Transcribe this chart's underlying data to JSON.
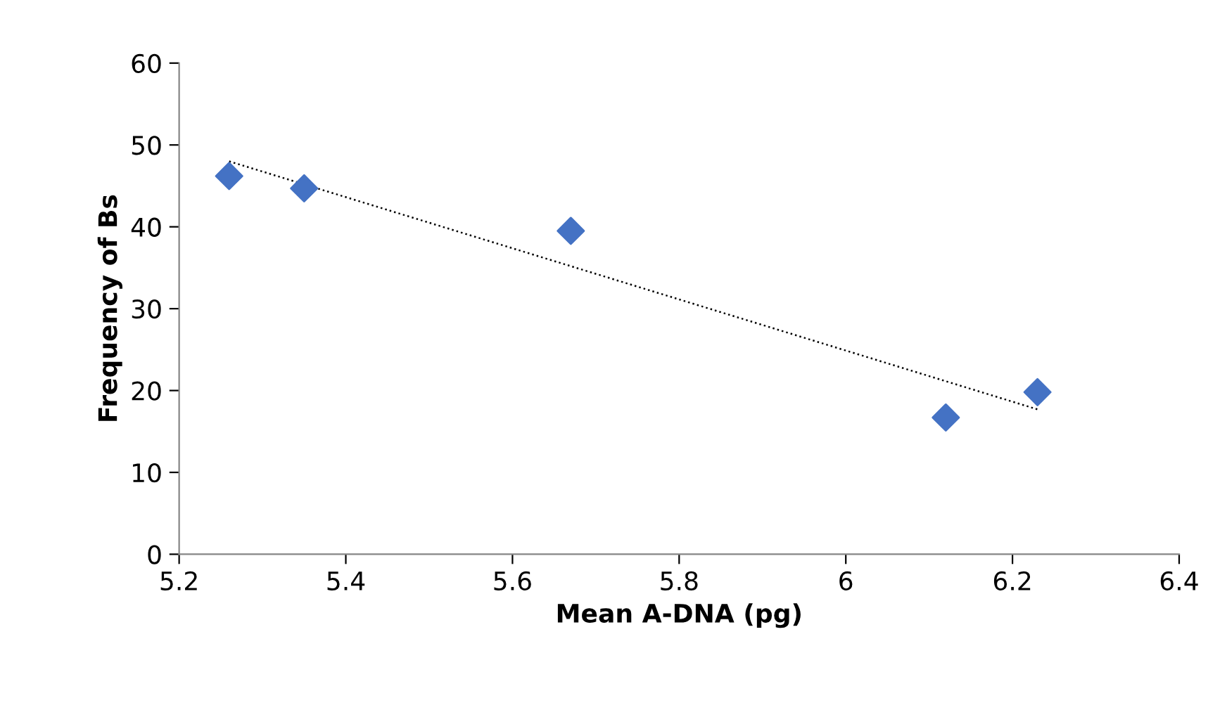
{
  "chart_data": {
    "type": "scatter",
    "xlabel": "Mean A-DNA (pg)",
    "ylabel": "Frequency of Bs",
    "series": [
      {
        "color": "#4472c4",
        "marker": "diamond",
        "x": [
          5.26,
          5.35,
          5.67,
          6.12,
          6.23
        ],
        "values": [
          46.2,
          44.7,
          39.5,
          16.7,
          19.8
        ]
      },
      {
        "type": "line",
        "color": "#000000",
        "line_style": "dotted",
        "marker": "none",
        "x": [
          5.26,
          6.23
        ],
        "values": [
          48.0,
          17.7
        ]
      }
    ],
    "xlim": [
      5.2,
      6.4
    ],
    "xticks": [
      5.2,
      5.4,
      5.6,
      5.8,
      6,
      6.2,
      6.4
    ],
    "ylim": [
      0,
      60
    ],
    "yticks": [
      0,
      10,
      20,
      30,
      40,
      50,
      60
    ],
    "grid": false,
    "legend": false
  }
}
